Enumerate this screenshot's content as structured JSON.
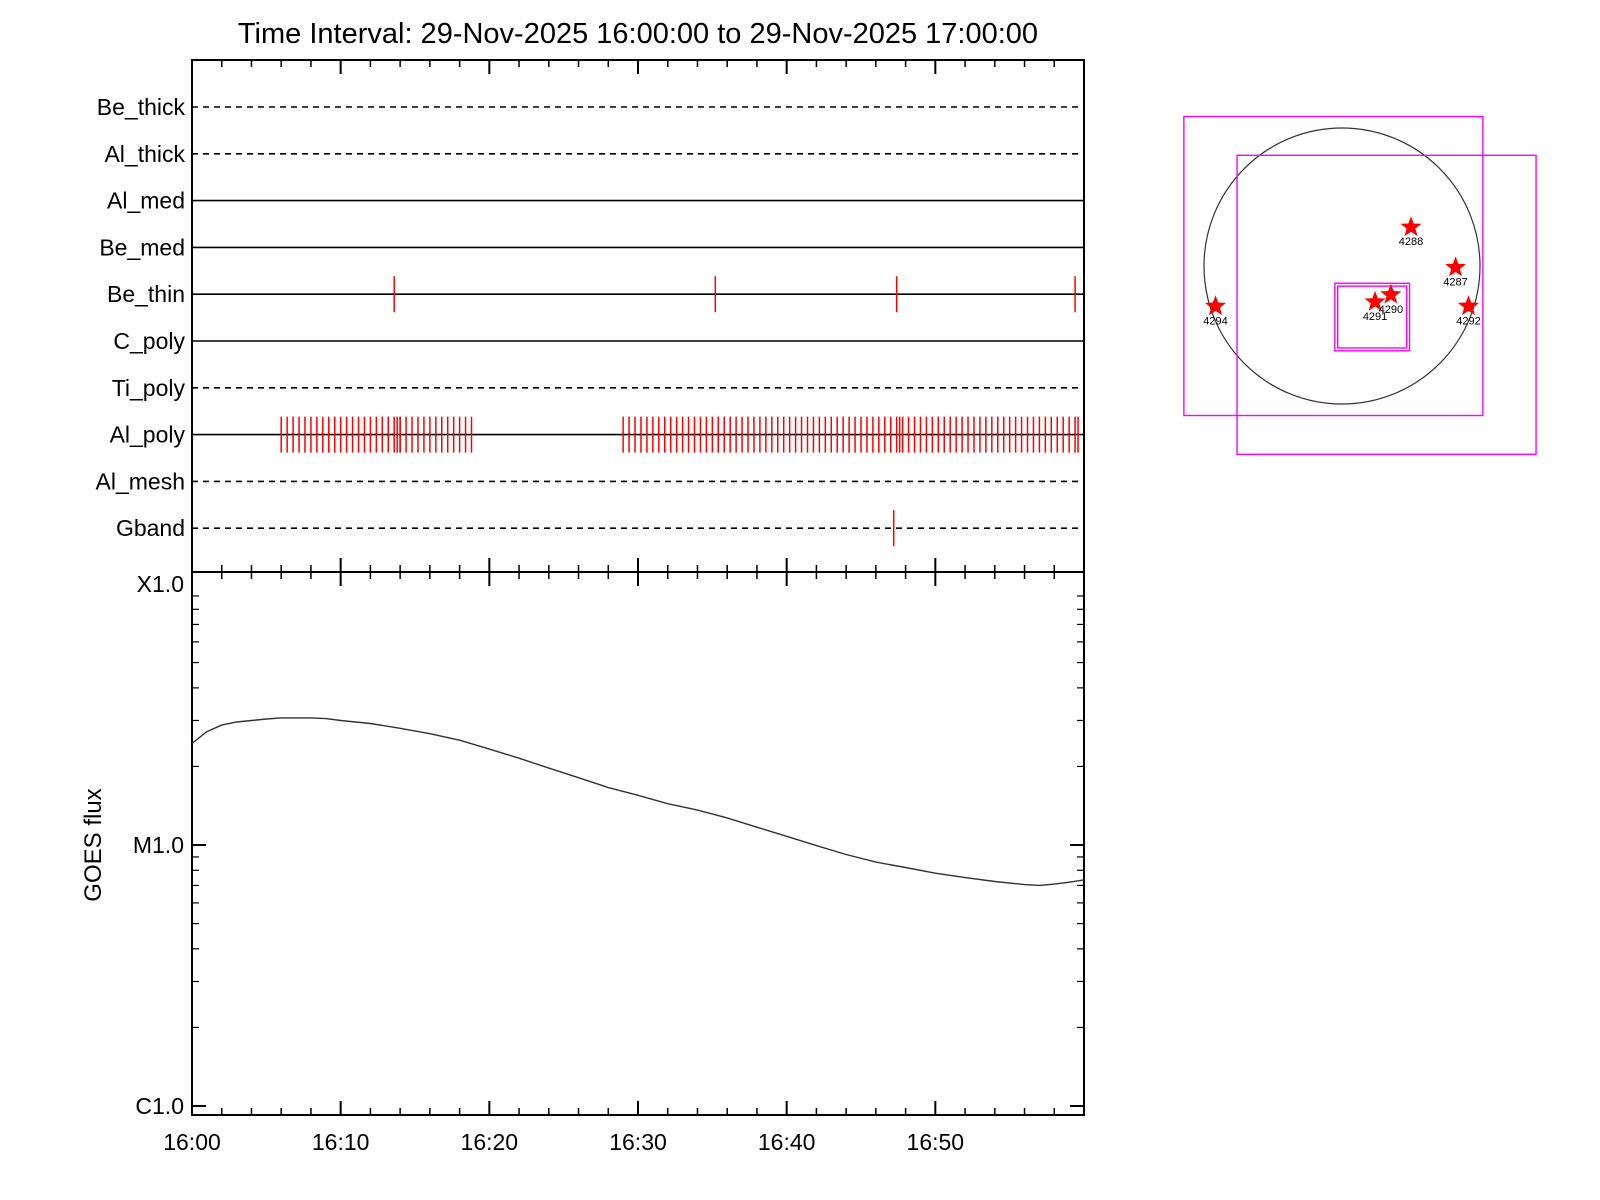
{
  "title": "Time Interval: 29-Nov-2025 16:00:00 to 29-Nov-2025 17:00:00",
  "colors": {
    "axis": "#000000",
    "marker": "#ff0000",
    "fov_box": "#ff00ff",
    "curve": "#333333",
    "disk": "#333333"
  },
  "chart_data": [
    {
      "type": "event-timeline",
      "x_domain_minutes": [
        0,
        60
      ],
      "x_tick_labels": [
        "16:00",
        "16:10",
        "16:20",
        "16:30",
        "16:40",
        "16:50"
      ],
      "x_tick_minutes": [
        0,
        10,
        20,
        30,
        40,
        50
      ],
      "rows": [
        {
          "label": "Be_thick",
          "style": "dashed",
          "events": []
        },
        {
          "label": "Al_thick",
          "style": "dashed",
          "events": []
        },
        {
          "label": "Al_med",
          "style": "solid",
          "events": []
        },
        {
          "label": "Be_med",
          "style": "solid",
          "events": []
        },
        {
          "label": "Be_thin",
          "style": "solid",
          "events": [
            13.6,
            35.2,
            47.4,
            59.4
          ]
        },
        {
          "label": "C_poly",
          "style": "solid",
          "events": []
        },
        {
          "label": "Ti_poly",
          "style": "dashed",
          "events": []
        },
        {
          "label": "Al_poly",
          "style": "solid",
          "events": [],
          "event_groups": [
            {
              "start": 6.0,
              "end": 19.0,
              "step": 0.4,
              "extra": [
                13.8,
                14.0
              ]
            },
            {
              "start": 29.0,
              "end": 59.6,
              "step": 0.4,
              "extra": [
                35.4,
                47.6,
                59.6
              ]
            }
          ]
        },
        {
          "label": "Al_mesh",
          "style": "dashed",
          "events": []
        },
        {
          "label": "Gband",
          "style": "dashed",
          "events": [
            47.2
          ]
        }
      ]
    },
    {
      "type": "line",
      "ylabel": "GOES flux",
      "yscale": "log",
      "ylim": [
        1e-06,
        0.0001
      ],
      "y_tick_labels": [
        {
          "value": 0.0001,
          "label": "X1.0"
        },
        {
          "value": 1e-05,
          "label": "M1.0"
        },
        {
          "value": 1e-06,
          "label": "C1.0"
        }
      ],
      "x_tick_labels": [
        "16:00",
        "16:10",
        "16:20",
        "16:30",
        "16:40",
        "16:50"
      ],
      "series": [
        {
          "x_minutes": [
            0,
            1,
            2,
            3,
            4,
            5,
            6,
            7,
            8,
            9,
            10,
            12,
            14,
            16,
            18,
            20,
            22,
            24,
            26,
            28,
            30,
            32,
            34,
            36,
            38,
            40,
            42,
            44,
            46,
            48,
            50,
            52,
            54,
            56,
            57,
            58,
            59,
            60
          ],
          "y": [
            2.45e-05,
            2.72e-05,
            2.88e-05,
            2.96e-05,
            3e-05,
            3.04e-05,
            3.07e-05,
            3.07e-05,
            3.07e-05,
            3.05e-05,
            3e-05,
            2.92e-05,
            2.8e-05,
            2.67e-05,
            2.52e-05,
            2.33e-05,
            2.15e-05,
            1.97e-05,
            1.81e-05,
            1.66e-05,
            1.55e-05,
            1.44e-05,
            1.36e-05,
            1.27e-05,
            1.17e-05,
            1.08e-05,
            9.95e-06,
            9.2e-06,
            8.6e-06,
            8.2e-06,
            7.8e-06,
            7.5e-06,
            7.25e-06,
            7.05e-06,
            7e-06,
            7.08e-06,
            7.2e-06,
            7.35e-06
          ]
        }
      ]
    },
    {
      "type": "scatter",
      "name": "solar-disk-map",
      "disk": {
        "center": [
          0,
          0
        ],
        "radius_arcsec": 960
      },
      "points": [
        {
          "label": "4288",
          "x": 480,
          "y": 270
        },
        {
          "label": "4287",
          "x": 790,
          "y": -10
        },
        {
          "label": "4294",
          "x": -880,
          "y": -280
        },
        {
          "label": "4291",
          "x": 230,
          "y": -250
        },
        {
          "label": "4290",
          "x": 340,
          "y": -200
        },
        {
          "label": "4292",
          "x": 880,
          "y": -280
        }
      ],
      "boxes": [
        {
          "x": [
            -1100,
            980
          ],
          "y": [
            -1040,
            1040
          ]
        },
        {
          "x": [
            -730,
            1350
          ],
          "y": [
            -1310,
            770
          ]
        },
        {
          "x": [
            -50,
            470
          ],
          "y": [
            -590,
            -120
          ]
        },
        {
          "x": [
            -30,
            450
          ],
          "y": [
            -570,
            -140
          ]
        }
      ]
    }
  ]
}
